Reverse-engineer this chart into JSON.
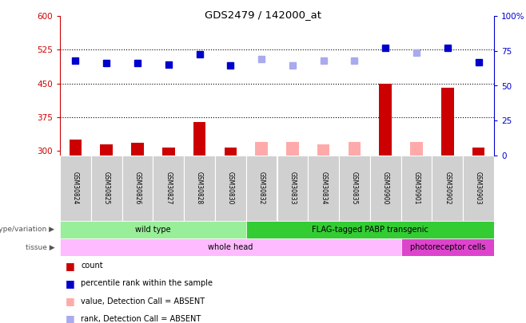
{
  "title": "GDS2479 / 142000_at",
  "samples": [
    "GSM30824",
    "GSM30825",
    "GSM30826",
    "GSM30827",
    "GSM30828",
    "GSM30830",
    "GSM30832",
    "GSM30833",
    "GSM30834",
    "GSM30835",
    "GSM30900",
    "GSM30901",
    "GSM30902",
    "GSM30903"
  ],
  "count_values": [
    325,
    315,
    318,
    308,
    365,
    307,
    320,
    320,
    315,
    320,
    450,
    320,
    440,
    307
  ],
  "count_absent": [
    false,
    false,
    false,
    false,
    false,
    false,
    true,
    true,
    true,
    true,
    false,
    true,
    false,
    false
  ],
  "percentile_values": [
    500,
    495,
    495,
    492,
    515,
    490,
    505,
    490,
    500,
    500,
    530,
    518,
    530,
    498
  ],
  "percentile_absent": [
    false,
    false,
    false,
    false,
    false,
    false,
    true,
    true,
    true,
    true,
    false,
    true,
    false,
    false
  ],
  "ylim_left": [
    290,
    600
  ],
  "ylim_right": [
    0,
    100
  ],
  "yticks_left": [
    300,
    375,
    450,
    525,
    600
  ],
  "yticks_right": [
    0,
    25,
    50,
    75,
    100
  ],
  "ytick_labels_right": [
    "0",
    "25",
    "50",
    "75",
    "100%"
  ],
  "hlines": [
    375,
    450,
    525
  ],
  "bar_width": 0.4,
  "color_count_present": "#cc0000",
  "color_count_absent": "#ffaaaa",
  "color_pct_present": "#0000cc",
  "color_pct_absent": "#aaaaee",
  "genotype_groups": [
    {
      "label": "wild type",
      "start": 0,
      "end": 5,
      "color": "#99ee99"
    },
    {
      "label": "FLAG-tagged PABP transgenic",
      "start": 6,
      "end": 13,
      "color": "#33cc33"
    }
  ],
  "tissue_groups": [
    {
      "label": "whole head",
      "start": 0,
      "end": 10,
      "color": "#ffbbff"
    },
    {
      "label": "photoreceptor cells",
      "start": 11,
      "end": 13,
      "color": "#dd44cc"
    }
  ],
  "legend_items": [
    {
      "label": "count",
      "color": "#cc0000"
    },
    {
      "label": "percentile rank within the sample",
      "color": "#0000cc"
    },
    {
      "label": "value, Detection Call = ABSENT",
      "color": "#ffaaaa"
    },
    {
      "label": "rank, Detection Call = ABSENT",
      "color": "#aaaaee"
    }
  ],
  "left_axis_color": "#cc0000",
  "right_axis_color": "#0000cc",
  "marker_size": 6
}
